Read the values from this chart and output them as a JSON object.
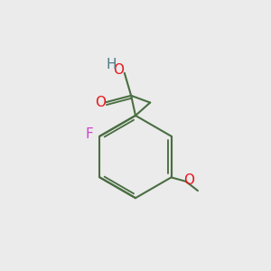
{
  "bg_color": "#ebebeb",
  "bond_color": "#4a6e42",
  "bond_width": 1.5,
  "atom_colors": {
    "O": "#e8151b",
    "F": "#cc44cc",
    "H": "#4a7a8a",
    "C": "#4a6e42"
  },
  "font_size_label": 11,
  "font_size_small": 10
}
